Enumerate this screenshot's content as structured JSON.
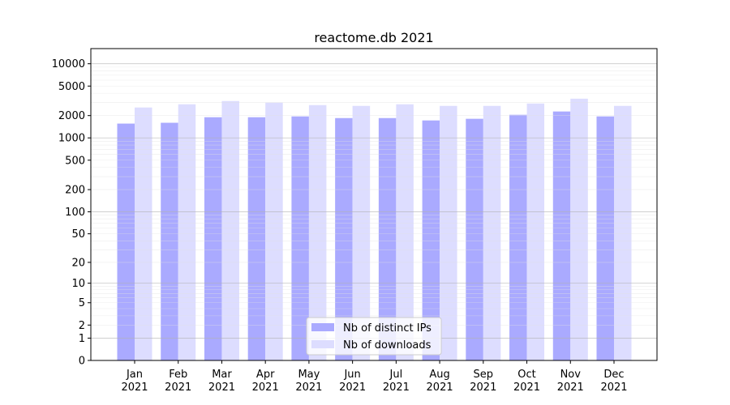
{
  "chart_data": {
    "type": "bar",
    "title": "reactome.db 2021",
    "xlabel": "",
    "ylabel": "",
    "yscale": "log(value+1)",
    "ylim": [
      0,
      16000
    ],
    "grid": true,
    "legend_position": "bottom-center",
    "categories": [
      "Jan\n2021",
      "Feb\n2021",
      "Mar\n2021",
      "Apr\n2021",
      "May\n2021",
      "Jun\n2021",
      "Jul\n2021",
      "Aug\n2021",
      "Sep\n2021",
      "Oct\n2021",
      "Nov\n2021",
      "Dec\n2021"
    ],
    "yticks": [
      0,
      1,
      2,
      5,
      10,
      20,
      50,
      100,
      200,
      500,
      1000,
      2000,
      5000,
      10000
    ],
    "series": [
      {
        "name": "Nb of distinct IPs",
        "color": "#aaaaff",
        "values": [
          1560,
          1600,
          1900,
          1900,
          1950,
          1850,
          1850,
          1720,
          1810,
          2050,
          2270,
          1950
        ]
      },
      {
        "name": "Nb of downloads",
        "color": "#ddddff",
        "values": [
          2570,
          2840,
          3140,
          2990,
          2770,
          2700,
          2840,
          2700,
          2700,
          2910,
          3380,
          2700
        ]
      }
    ]
  }
}
